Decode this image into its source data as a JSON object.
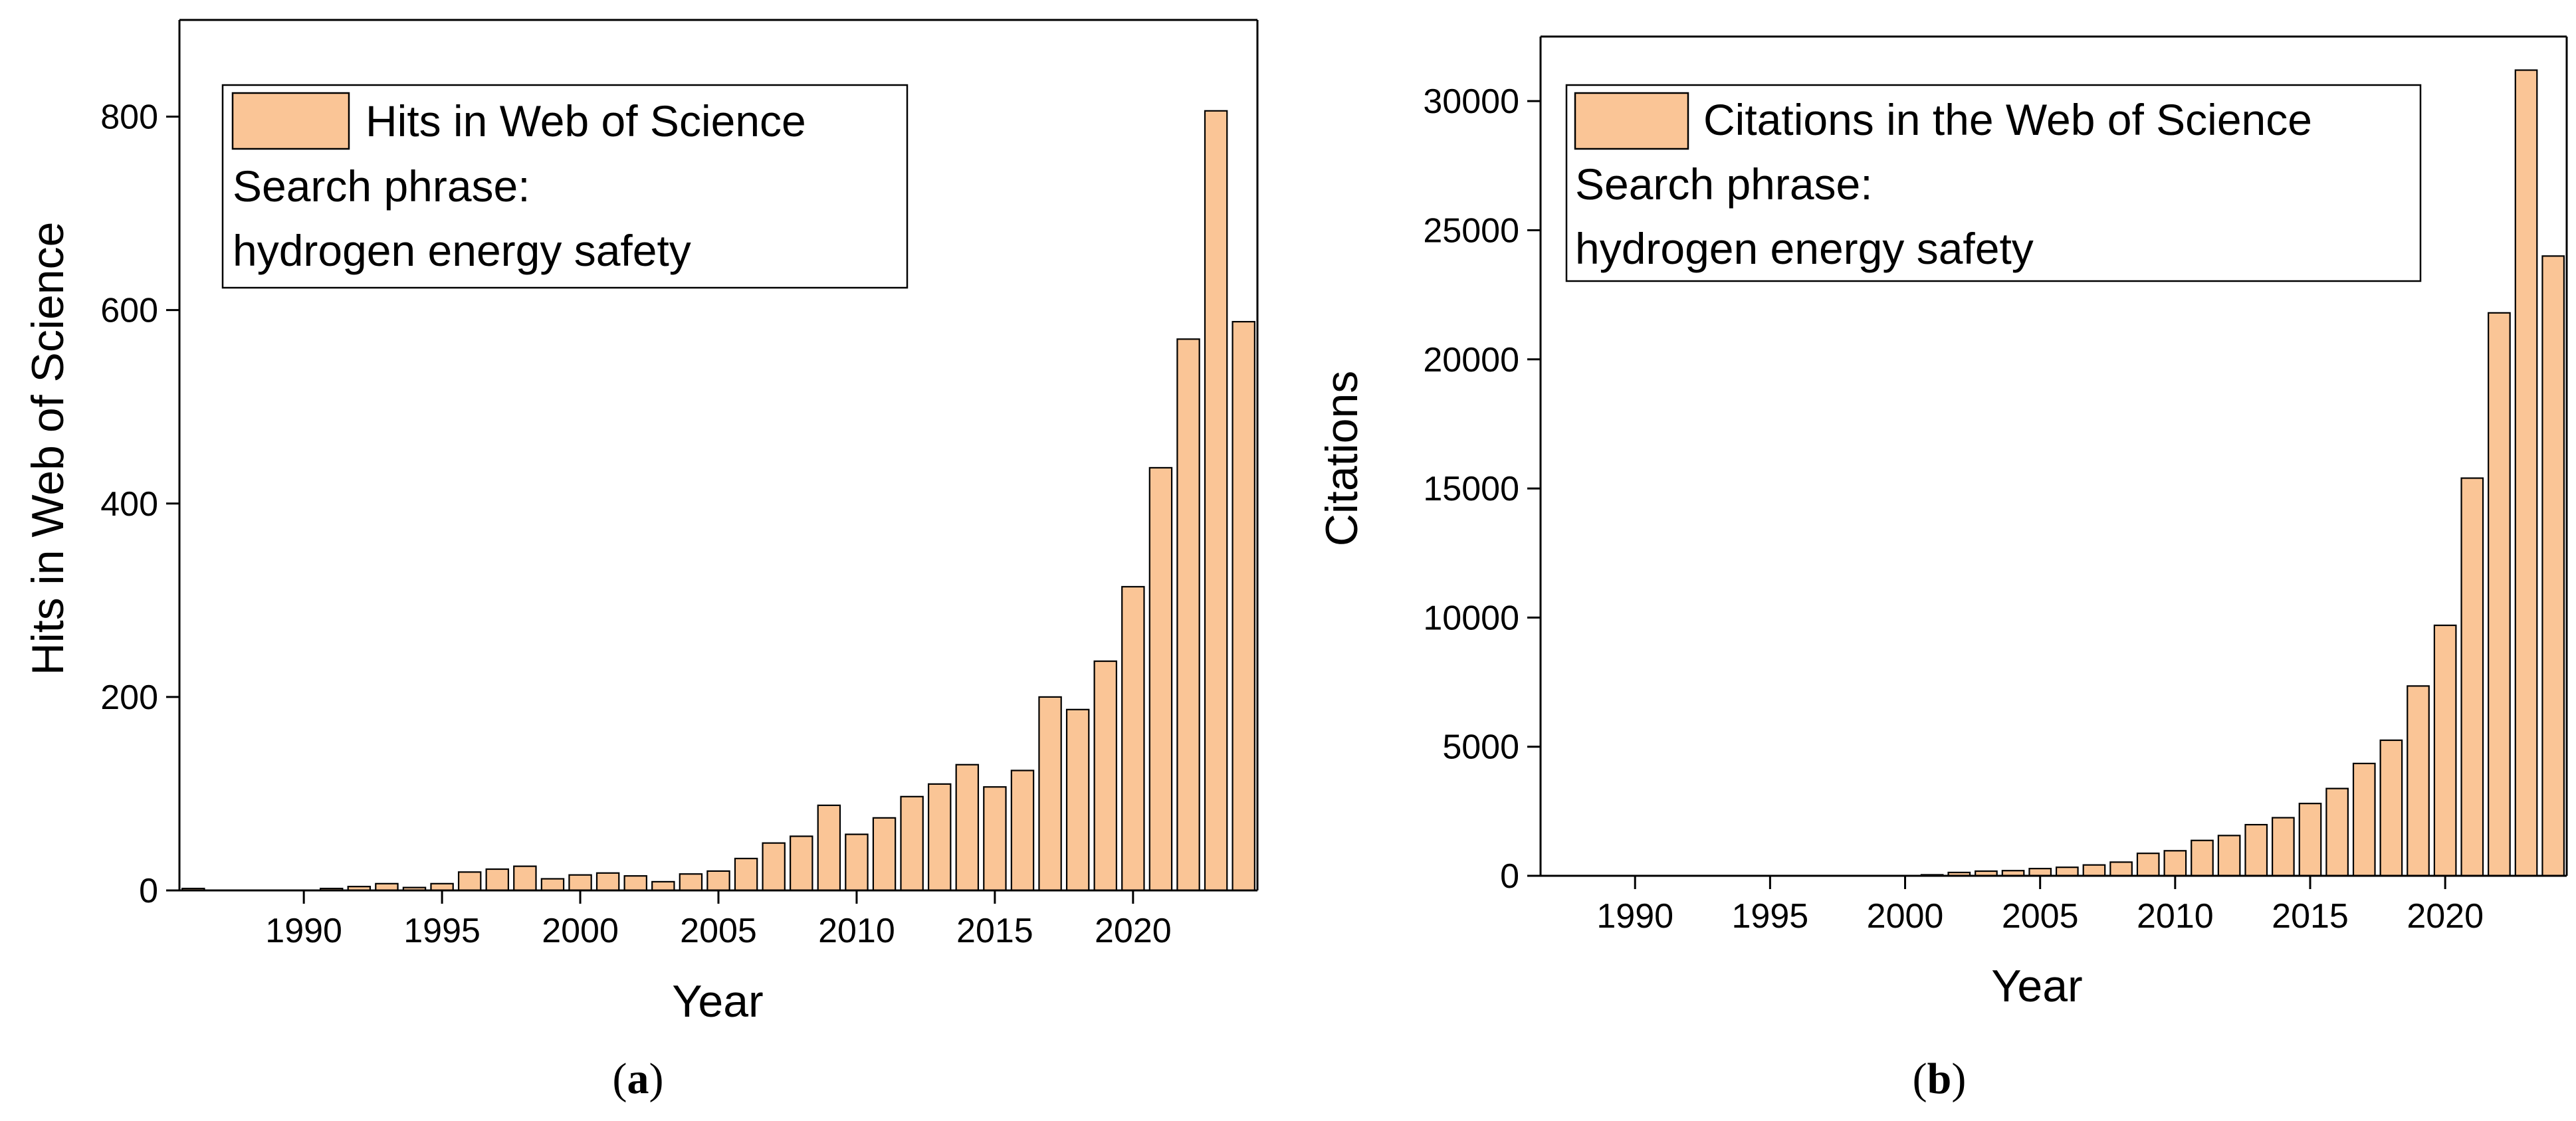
{
  "bar_color": "#fac596",
  "chart_data": [
    {
      "type": "bar",
      "panel_label": "a",
      "xlabel": "Year",
      "ylabel": "Hits in Web of Science",
      "xlim": [
        1985.5,
        2024.5
      ],
      "ylim": [
        0,
        900
      ],
      "xticks": [
        1990,
        1995,
        2000,
        2005,
        2010,
        2015,
        2020
      ],
      "yticks": [
        0,
        200,
        400,
        600,
        800
      ],
      "legend": {
        "placement": "top-left",
        "series_label": "Hits in Web of Science",
        "lines": [
          "Search phrase:",
          "hydrogen energy safety"
        ]
      },
      "x": [
        1986,
        1987,
        1988,
        1989,
        1990,
        1991,
        1992,
        1993,
        1994,
        1995,
        1996,
        1997,
        1998,
        1999,
        2000,
        2001,
        2002,
        2003,
        2004,
        2005,
        2006,
        2007,
        2008,
        2009,
        2010,
        2011,
        2012,
        2013,
        2014,
        2015,
        2016,
        2017,
        2018,
        2019,
        2020,
        2021,
        2022,
        2023,
        2024
      ],
      "values": [
        2,
        0,
        0,
        0,
        0,
        2,
        4,
        7,
        3,
        7,
        19,
        22,
        25,
        12,
        16,
        18,
        15,
        9,
        17,
        20,
        33,
        49,
        56,
        88,
        58,
        75,
        97,
        110,
        130,
        107,
        124,
        200,
        187,
        237,
        314,
        437,
        570,
        806,
        588
      ]
    },
    {
      "type": "bar",
      "panel_label": "b",
      "xlabel": "Year",
      "ylabel": "Citations",
      "xlim": [
        1986.5,
        2024.5
      ],
      "ylim": [
        0,
        32500
      ],
      "xticks": [
        1990,
        1995,
        2000,
        2005,
        2010,
        2015,
        2020
      ],
      "yticks": [
        0,
        5000,
        10000,
        15000,
        20000,
        25000,
        30000
      ],
      "legend": {
        "placement": "top-left",
        "series_label": "Citations in the Web of Science",
        "lines": [
          "Search phrase:",
          "hydrogen energy safety"
        ]
      },
      "x": [
        1987,
        1988,
        1989,
        1990,
        1991,
        1992,
        1993,
        1994,
        1995,
        1996,
        1997,
        1998,
        1999,
        2000,
        2001,
        2002,
        2003,
        2004,
        2005,
        2006,
        2007,
        2008,
        2009,
        2010,
        2011,
        2012,
        2013,
        2014,
        2015,
        2016,
        2017,
        2018,
        2019,
        2020,
        2021,
        2022,
        2023,
        2024
      ],
      "values": [
        0,
        0,
        0,
        0,
        0,
        0,
        0,
        0,
        0,
        0,
        0,
        0,
        0,
        0,
        40,
        130,
        180,
        200,
        280,
        330,
        420,
        530,
        870,
        970,
        1370,
        1560,
        1980,
        2250,
        2800,
        3380,
        4350,
        5250,
        7350,
        9700,
        15400,
        21800,
        31200,
        24000
      ]
    }
  ]
}
